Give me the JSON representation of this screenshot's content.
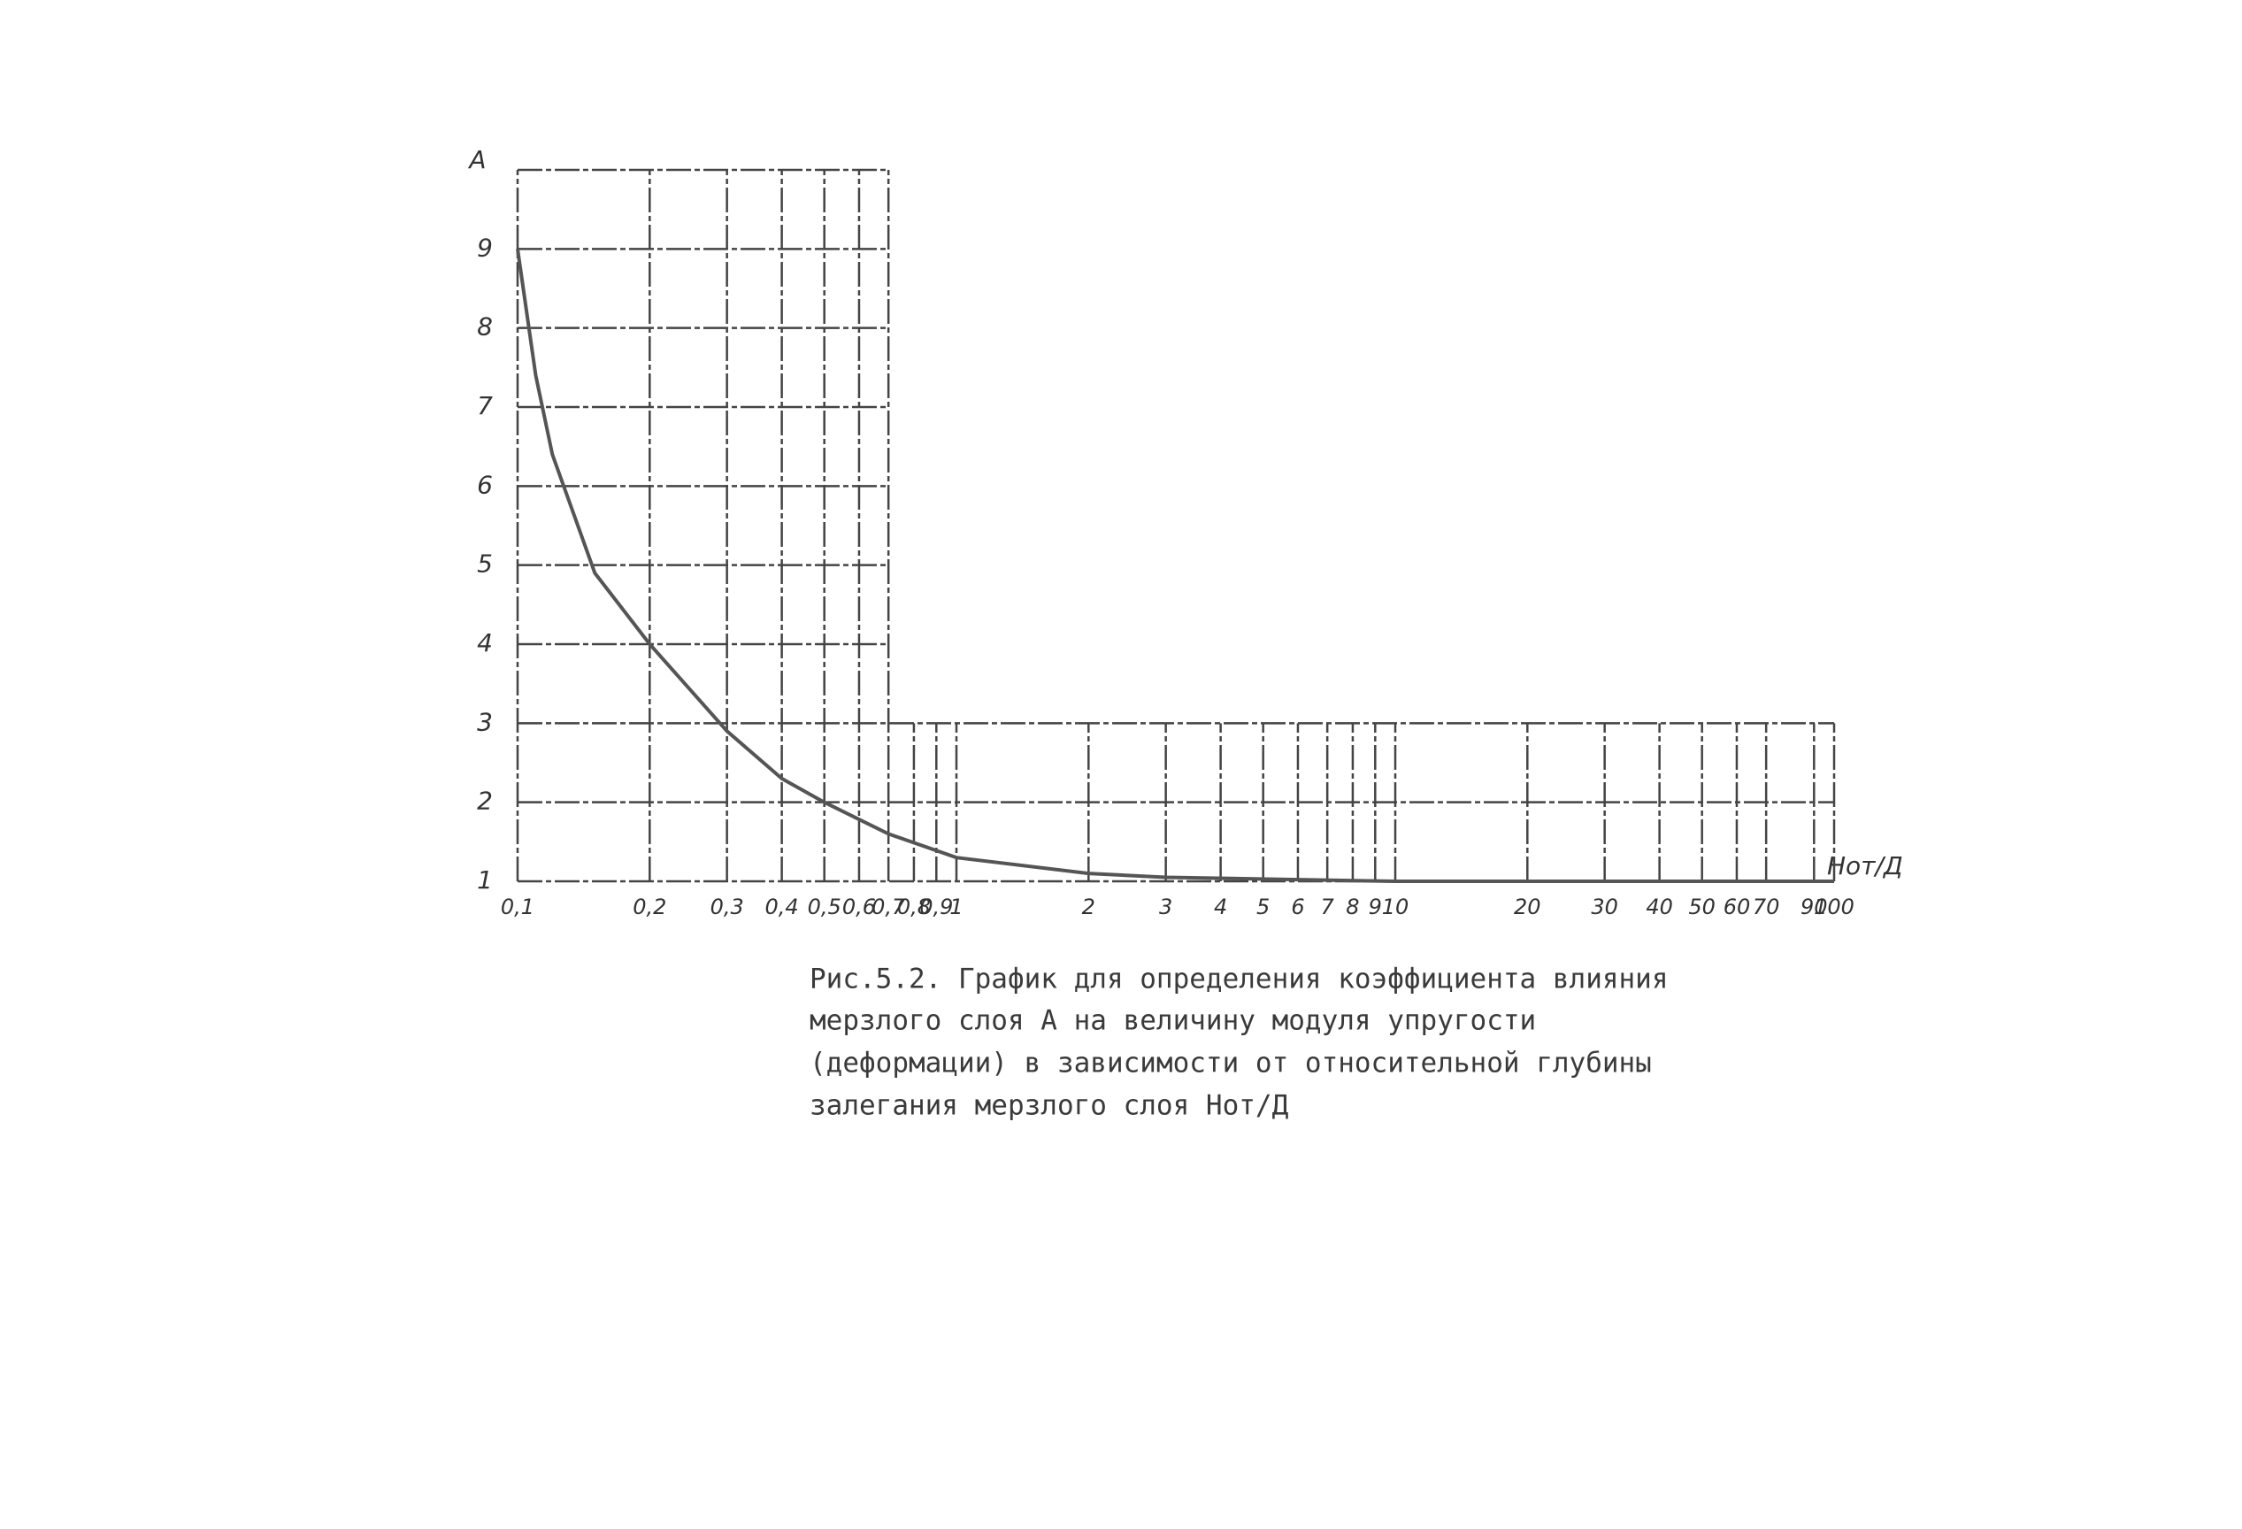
{
  "chart_data": {
    "type": "line",
    "y_label": "A",
    "x_label": "Hот/Д",
    "caption": [
      "Рис.5.2. График для определения коэффициента влияния",
      "мерзлого слоя А на величину модуля упругости",
      "(деформации) в зависимости от относительной глубины",
      "залегания мерзлого слоя Нот/Д"
    ],
    "x_scale": "log",
    "xlim": [
      0.1,
      100
    ],
    "ylim": [
      1,
      10
    ],
    "xticks": [
      {
        "value": 0.1,
        "label": "0,1"
      },
      {
        "value": 0.2,
        "label": "0,2"
      },
      {
        "value": 0.3,
        "label": "0,3"
      },
      {
        "value": 0.4,
        "label": "0,4"
      },
      {
        "value": 0.5,
        "label": "0,5"
      },
      {
        "value": 0.6,
        "label": "0,6"
      },
      {
        "value": 0.7,
        "label": "0,7"
      },
      {
        "value": 0.8,
        "label": "0,8"
      },
      {
        "value": 0.9,
        "label": "0,9"
      },
      1,
      2,
      3,
      4,
      5,
      6,
      7,
      8,
      9,
      10,
      20,
      30,
      40,
      50,
      60,
      70,
      90,
      100
    ],
    "yticks": [
      1,
      2,
      3,
      4,
      5,
      6,
      7,
      8,
      9
    ],
    "tall_grid_until": 0.7,
    "grid": true,
    "series": [
      {
        "color": "#555555",
        "x": [
          0.1,
          0.11,
          0.12,
          0.15,
          0.2,
          0.3,
          0.4,
          0.5,
          0.7,
          1,
          2,
          3,
          10,
          100
        ],
        "values": [
          9,
          7.4,
          6.4,
          4.9,
          4.0,
          2.9,
          2.3,
          2.0,
          1.6,
          1.3,
          1.1,
          1.05,
          1.0,
          1.0
        ]
      }
    ]
  }
}
